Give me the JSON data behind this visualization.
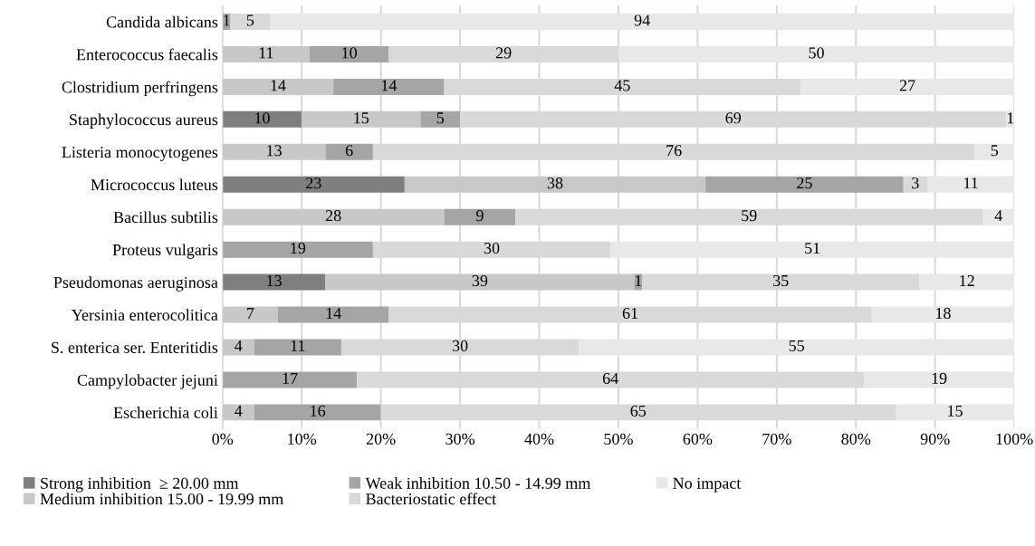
{
  "chart_data": {
    "type": "bar",
    "orientation": "horizontal",
    "stacked": true,
    "data_labels": true,
    "grid": "x",
    "legend": "bottom",
    "categories": [
      "Candida albicans",
      "Enterococcus faecalis",
      "Clostridium perfringens",
      "Staphylococcus aureus",
      "Listeria monocytogenes",
      "Micrococcus luteus",
      "Bacillus subtilis",
      "Proteus vulgaris",
      "Pseudomonas aeruginosa",
      "Yersinia enterocolitica",
      "S. enterica ser. Enteritidis",
      "Campylobacter jejuni",
      "Escherichia coli"
    ],
    "xlim": [
      0,
      100
    ],
    "xticks": [
      {
        "value": 0,
        "label": "0%"
      },
      {
        "value": 10,
        "label": "10%"
      },
      {
        "value": 20,
        "label": "20%"
      },
      {
        "value": 30,
        "label": "30%"
      },
      {
        "value": 40,
        "label": "40%"
      },
      {
        "value": 50,
        "label": "50%"
      },
      {
        "value": 60,
        "label": "60%"
      },
      {
        "value": 70,
        "label": "70%"
      },
      {
        "value": 80,
        "label": "80%"
      },
      {
        "value": 90,
        "label": "90%"
      },
      {
        "value": 100,
        "label": "100%"
      }
    ],
    "series": [
      {
        "name": "Strong inhibition  ≥ 20.00 mm",
        "color": "#7f7f7f",
        "values": [
          null,
          null,
          null,
          10,
          null,
          23,
          null,
          null,
          13,
          null,
          null,
          null,
          null
        ]
      },
      {
        "name": "Medium inhibition 15.00 - 19.99 mm",
        "color": "#c8c8c8",
        "values": [
          null,
          11,
          14,
          15,
          13,
          38,
          28,
          null,
          39,
          7,
          4,
          null,
          4
        ]
      },
      {
        "name": "Weak inhibition 10.50 - 14.99 mm",
        "color": "#a5a5a5",
        "values": [
          1,
          10,
          14,
          5,
          6,
          25,
          9,
          19,
          1,
          14,
          11,
          17,
          16
        ]
      },
      {
        "name": "Bacteriostatic effect",
        "color": "#d9d9d9",
        "values": [
          5,
          29,
          45,
          69,
          76,
          3,
          59,
          30,
          35,
          61,
          30,
          64,
          65
        ]
      },
      {
        "name": "No impact",
        "color": "#e8e8e8",
        "values": [
          94,
          50,
          27,
          1,
          5,
          11,
          4,
          51,
          12,
          18,
          55,
          19,
          15
        ]
      }
    ]
  }
}
